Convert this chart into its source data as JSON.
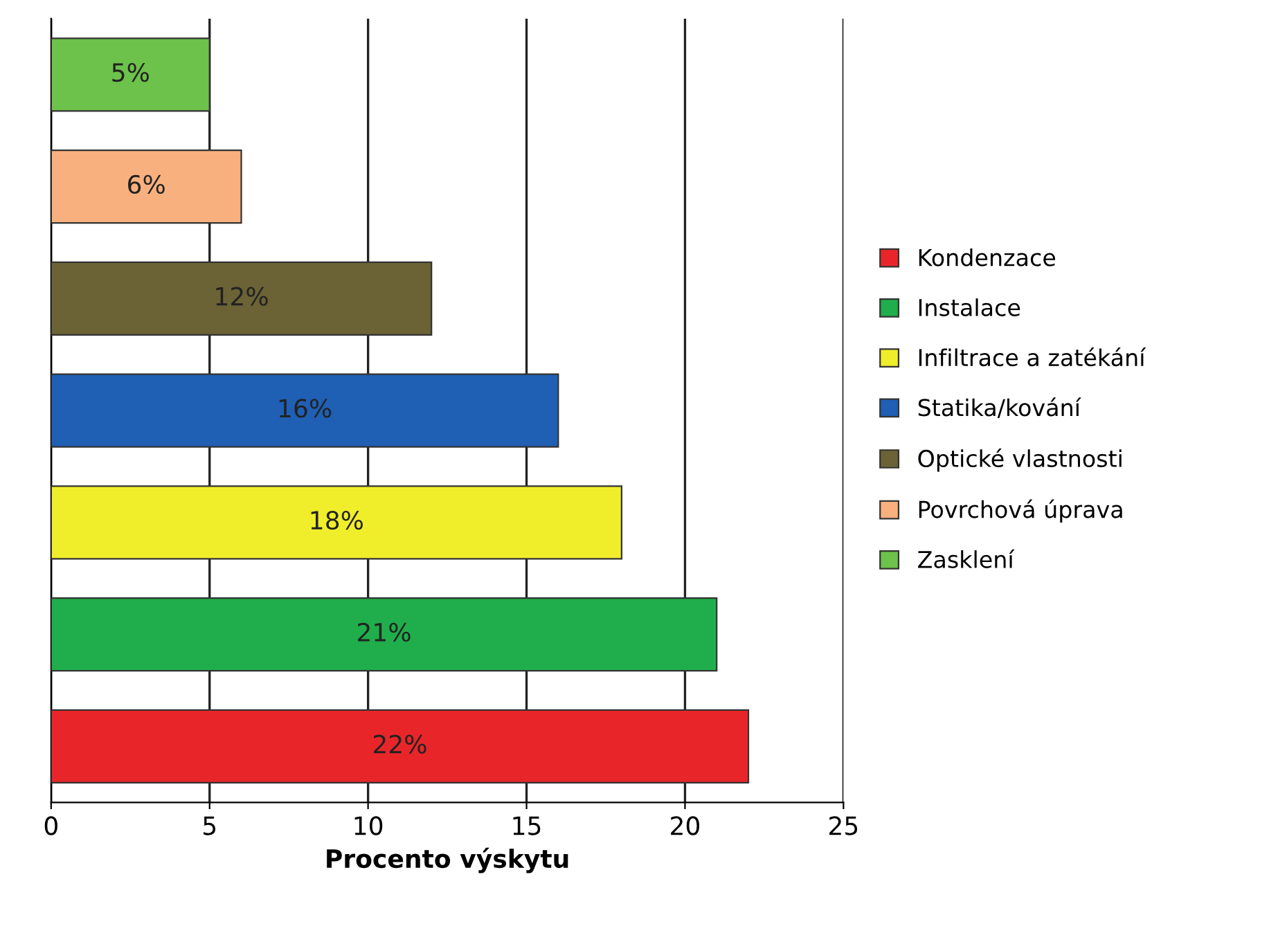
{
  "chart_data": {
    "type": "bar",
    "orientation": "horizontal",
    "xlabel": "Procento výskytu",
    "categories": [
      null,
      null,
      null,
      null,
      null,
      null,
      null
    ],
    "series": [
      {
        "name": "Kondenzace",
        "color": "#e8262a",
        "values": [
          null,
          null,
          null,
          null,
          null,
          null,
          22
        ],
        "value_labels": [
          null,
          null,
          null,
          null,
          null,
          null,
          "22%"
        ]
      },
      {
        "name": "Instalace",
        "color": "#1fae4b",
        "values": [
          null,
          null,
          null,
          null,
          null,
          21,
          null
        ],
        "value_labels": [
          null,
          null,
          null,
          null,
          null,
          "21%",
          null
        ]
      },
      {
        "name": "Infiltrace a zatékání",
        "color": "#f0ee2a",
        "values": [
          null,
          null,
          null,
          null,
          18,
          null,
          null
        ],
        "value_labels": [
          null,
          null,
          null,
          null,
          "18%",
          null,
          null
        ]
      },
      {
        "name": "Statika/kování",
        "color": "#1f5fb4",
        "values": [
          null,
          null,
          null,
          16,
          null,
          null,
          null
        ],
        "value_labels": [
          null,
          null,
          null,
          "16%",
          null,
          null,
          null
        ]
      },
      {
        "name": "Optické vlastnosti",
        "color": "#6b6236",
        "values": [
          null,
          null,
          12,
          null,
          null,
          null,
          null
        ],
        "value_labels": [
          null,
          null,
          "12%",
          null,
          null,
          null,
          null
        ]
      },
      {
        "name": "Povrchová úprava",
        "color": "#f9b07f",
        "values": [
          null,
          6,
          null,
          null,
          null,
          null,
          null
        ],
        "value_labels": [
          null,
          "6%",
          null,
          null,
          null,
          null,
          null
        ]
      },
      {
        "name": "Zasklení",
        "color": "#6cc24a",
        "values": [
          5,
          null,
          null,
          null,
          null,
          null,
          null
        ],
        "value_labels": [
          "5%",
          null,
          null,
          null,
          null,
          null,
          null
        ]
      }
    ],
    "xlim": [
      0,
      25
    ],
    "xticks": [
      0,
      5,
      10,
      15,
      20,
      25
    ],
    "grid": "x",
    "legend": "right",
    "tick_labels": "x"
  }
}
